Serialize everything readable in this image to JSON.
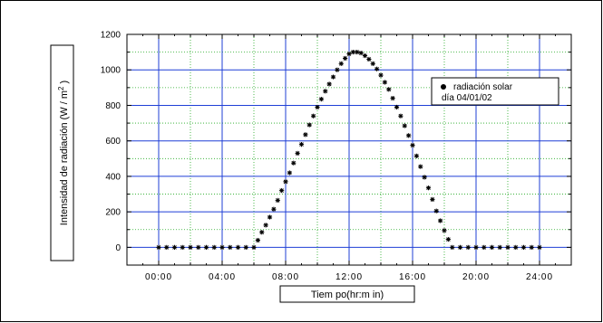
{
  "chart_data": {
    "type": "scatter",
    "title": "",
    "xlabel": "Tiem po(hr:m in)",
    "ylabel_main": "Intensidad de radiación  (W / m",
    "ylabel_sup": "2",
    "ylabel_end": " )",
    "xlim": [
      "-02:00",
      "26:00"
    ],
    "ylim": [
      -100,
      1200
    ],
    "x_ticks": [
      "00:00",
      "04:00",
      "08:00",
      "12:00",
      "16:00",
      "20:00",
      "24:00"
    ],
    "y_ticks": [
      0,
      200,
      400,
      600,
      800,
      1000,
      1200
    ],
    "grid": true,
    "legend_position": "top-right",
    "series": [
      {
        "name": "radiación solar",
        "name_line2": "día 04/01/02",
        "marker": "asterisk",
        "color": "#000000",
        "x": [
          "00:00",
          "00:30",
          "01:00",
          "01:30",
          "02:00",
          "02:30",
          "03:00",
          "03:30",
          "04:00",
          "04:30",
          "05:00",
          "05:30",
          "06:00",
          "06:15",
          "06:30",
          "06:45",
          "07:00",
          "07:15",
          "07:30",
          "07:45",
          "08:00",
          "08:15",
          "08:30",
          "08:45",
          "09:00",
          "09:15",
          "09:30",
          "09:45",
          "10:00",
          "10:15",
          "10:30",
          "10:45",
          "11:00",
          "11:15",
          "11:30",
          "11:45",
          "12:00",
          "12:15",
          "12:30",
          "12:45",
          "13:00",
          "13:15",
          "13:30",
          "13:45",
          "14:00",
          "14:15",
          "14:30",
          "14:45",
          "15:00",
          "15:15",
          "15:30",
          "15:45",
          "16:00",
          "16:15",
          "16:30",
          "16:45",
          "17:00",
          "17:15",
          "17:30",
          "17:45",
          "18:00",
          "18:15",
          "18:30",
          "19:00",
          "19:30",
          "20:00",
          "20:30",
          "21:00",
          "21:30",
          "22:00",
          "22:30",
          "23:00",
          "23:30",
          "24:00"
        ],
        "y": [
          0,
          0,
          0,
          0,
          0,
          0,
          0,
          0,
          0,
          0,
          0,
          0,
          0,
          40,
          85,
          125,
          170,
          215,
          265,
          320,
          370,
          420,
          475,
          530,
          580,
          635,
          690,
          740,
          790,
          835,
          880,
          920,
          960,
          1000,
          1035,
          1065,
          1090,
          1100,
          1100,
          1095,
          1080,
          1060,
          1035,
          1005,
          970,
          930,
          890,
          840,
          790,
          740,
          685,
          630,
          575,
          515,
          455,
          395,
          335,
          270,
          205,
          150,
          95,
          45,
          0,
          0,
          0,
          0,
          0,
          0,
          0,
          0,
          0,
          0,
          0,
          0
        ]
      }
    ]
  }
}
